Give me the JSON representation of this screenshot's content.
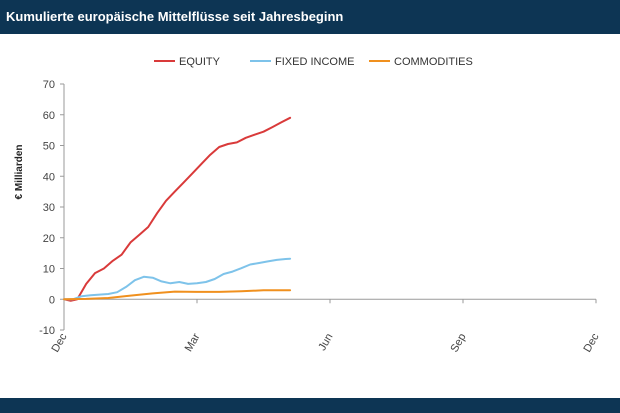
{
  "header": {
    "title": "Kumulierte europäische Mittelflüsse seit Jahresbeginn"
  },
  "colors": {
    "header_bg": "#0d3554",
    "equity": "#d93a3a",
    "fixed_income": "#7ec3ea",
    "commodities": "#f0901e",
    "axis": "#9a9a9a",
    "text": "#444444"
  },
  "chart_data": {
    "type": "line",
    "title": "",
    "xlabel": "",
    "ylabel": "€ Milliarden",
    "ylim": [
      -10,
      70
    ],
    "yticks": [
      -10,
      0,
      10,
      20,
      30,
      40,
      50,
      60,
      70
    ],
    "xlim": [
      0,
      12
    ],
    "xticks": [
      {
        "x": 0,
        "label": "Dec"
      },
      {
        "x": 3,
        "label": "Mar"
      },
      {
        "x": 6,
        "label": "Jun"
      },
      {
        "x": 9,
        "label": "Sep"
      },
      {
        "x": 12,
        "label": "Dec"
      }
    ],
    "grid": false,
    "legend": "top",
    "series": [
      {
        "name": "EQUITY",
        "color": "#d93a3a",
        "x": [
          0,
          0.15,
          0.3,
          0.5,
          0.7,
          0.9,
          1.1,
          1.3,
          1.5,
          1.7,
          1.9,
          2.1,
          2.3,
          2.5,
          2.7,
          2.9,
          3.1,
          3.3,
          3.5,
          3.7,
          3.9,
          4.1,
          4.3,
          4.5,
          4.7,
          4.9,
          5.1
        ],
        "values": [
          0,
          -0.5,
          0,
          5,
          8.5,
          10,
          12.5,
          14.5,
          18.5,
          21,
          23.5,
          28,
          32,
          35,
          38,
          41,
          44,
          47,
          49.5,
          50.5,
          51,
          52.5,
          53.5,
          54.5,
          56,
          57.5,
          59
        ]
      },
      {
        "name": "FIXED INCOME",
        "color": "#7ec3ea",
        "x": [
          0,
          0.2,
          0.4,
          0.6,
          0.8,
          1.0,
          1.2,
          1.4,
          1.6,
          1.8,
          2.0,
          2.2,
          2.4,
          2.6,
          2.8,
          3.0,
          3.2,
          3.4,
          3.6,
          3.8,
          4.0,
          4.2,
          4.4,
          4.6,
          4.8,
          5.0,
          5.1
        ],
        "values": [
          0,
          0,
          1,
          1.3,
          1.5,
          1.7,
          2.3,
          4,
          6.2,
          7.3,
          7,
          5.8,
          5.2,
          5.6,
          5,
          5.2,
          5.6,
          6.6,
          8.2,
          9,
          10.1,
          11.3,
          11.8,
          12.3,
          12.8,
          13.1,
          13.2
        ]
      },
      {
        "name": "COMMODITIES",
        "color": "#f0901e",
        "x": [
          0,
          0.5,
          1.0,
          1.5,
          2.0,
          2.5,
          3.0,
          3.5,
          4.0,
          4.5,
          5.1
        ],
        "values": [
          0,
          0.1,
          0.4,
          1.2,
          1.9,
          2.5,
          2.4,
          2.4,
          2.6,
          2.9,
          2.9
        ]
      }
    ]
  }
}
